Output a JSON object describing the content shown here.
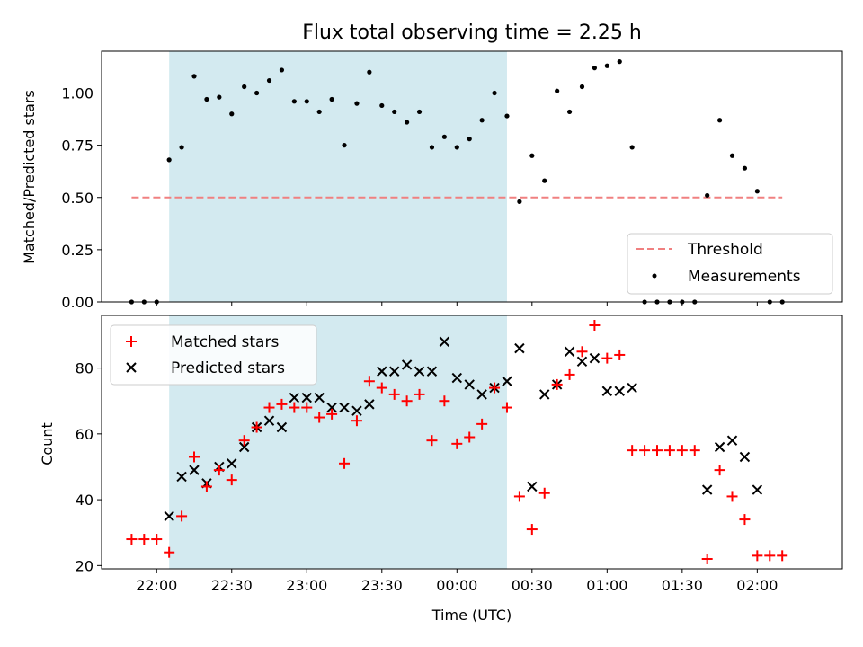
{
  "chart_data": [
    {
      "type": "scatter",
      "title": "Flux total observing time = 2.25 h",
      "xlabel": "",
      "ylabel": "Matched/Predicted stars",
      "ylim": [
        0,
        1.2
      ],
      "yticks": [
        "0.00",
        "0.25",
        "0.50",
        "0.75",
        "1.00"
      ],
      "ytick_values": [
        0,
        0.25,
        0.5,
        0.75,
        1.0
      ],
      "legend_position": "lower-right",
      "shaded_interval": {
        "start": "22:05",
        "end": "00:20",
        "color": "#d3eaf0"
      },
      "threshold": {
        "name": "Threshold",
        "value": 0.5,
        "x_start": "21:50",
        "x_end": "02:10",
        "color": "#f08080"
      },
      "series": [
        {
          "name": "Measurements",
          "marker": "dot",
          "color": "#000000",
          "points": [
            [
              "21:50",
              0
            ],
            [
              "21:55",
              0
            ],
            [
              "22:00",
              0
            ],
            [
              "22:05",
              0.68
            ],
            [
              "22:10",
              0.74
            ],
            [
              "22:15",
              1.08
            ],
            [
              "22:20",
              0.97
            ],
            [
              "22:25",
              0.98
            ],
            [
              "22:30",
              0.9
            ],
            [
              "22:35",
              1.03
            ],
            [
              "22:40",
              1.0
            ],
            [
              "22:45",
              1.06
            ],
            [
              "22:50",
              1.11
            ],
            [
              "22:55",
              0.96
            ],
            [
              "23:00",
              0.96
            ],
            [
              "23:05",
              0.91
            ],
            [
              "23:10",
              0.97
            ],
            [
              "23:15",
              0.75
            ],
            [
              "23:20",
              0.95
            ],
            [
              "23:25",
              1.1
            ],
            [
              "23:30",
              0.94
            ],
            [
              "23:35",
              0.91
            ],
            [
              "23:40",
              0.86
            ],
            [
              "23:45",
              0.91
            ],
            [
              "23:50",
              0.74
            ],
            [
              "23:55",
              0.79
            ],
            [
              "00:00",
              0.74
            ],
            [
              "00:05",
              0.78
            ],
            [
              "00:10",
              0.87
            ],
            [
              "00:15",
              1.0
            ],
            [
              "00:20",
              0.89
            ],
            [
              "00:25",
              0.48
            ],
            [
              "00:30",
              0.7
            ],
            [
              "00:35",
              0.58
            ],
            [
              "00:40",
              1.01
            ],
            [
              "00:45",
              0.91
            ],
            [
              "00:50",
              1.03
            ],
            [
              "00:55",
              1.12
            ],
            [
              "01:00",
              1.13
            ],
            [
              "01:05",
              1.15
            ],
            [
              "01:10",
              0.74
            ],
            [
              "01:15",
              0
            ],
            [
              "01:20",
              0
            ],
            [
              "01:25",
              0
            ],
            [
              "01:30",
              0
            ],
            [
              "01:35",
              0
            ],
            [
              "01:40",
              0.51
            ],
            [
              "01:45",
              0.87
            ],
            [
              "01:50",
              0.7
            ],
            [
              "01:55",
              0.64
            ],
            [
              "02:00",
              0.53
            ],
            [
              "02:05",
              0
            ],
            [
              "02:10",
              0
            ]
          ]
        }
      ]
    },
    {
      "type": "scatter",
      "title": "",
      "xlabel": "Time (UTC)",
      "ylabel": "Count",
      "ylim": [
        19,
        96
      ],
      "yticks": [
        "20",
        "40",
        "60",
        "80"
      ],
      "ytick_values": [
        20,
        40,
        60,
        80
      ],
      "xticks": [
        "22:00",
        "22:30",
        "23:00",
        "23:30",
        "00:00",
        "00:30",
        "01:00",
        "01:30",
        "02:00"
      ],
      "xrange": [
        "21:38",
        "02:34"
      ],
      "legend_position": "upper-left",
      "shaded_interval": {
        "start": "22:05",
        "end": "00:20",
        "color": "#d3eaf0"
      },
      "series": [
        {
          "name": "Matched stars",
          "marker": "plus",
          "color": "#ff0000",
          "points": [
            [
              "21:50",
              28
            ],
            [
              "21:55",
              28
            ],
            [
              "22:00",
              28
            ],
            [
              "22:05",
              24
            ],
            [
              "22:10",
              35
            ],
            [
              "22:15",
              53
            ],
            [
              "22:20",
              44
            ],
            [
              "22:25",
              49
            ],
            [
              "22:30",
              46
            ],
            [
              "22:35",
              58
            ],
            [
              "22:40",
              62
            ],
            [
              "22:45",
              68
            ],
            [
              "22:50",
              69
            ],
            [
              "22:55",
              68
            ],
            [
              "23:00",
              68
            ],
            [
              "23:05",
              65
            ],
            [
              "23:10",
              66
            ],
            [
              "23:15",
              51
            ],
            [
              "23:20",
              64
            ],
            [
              "23:25",
              76
            ],
            [
              "23:30",
              74
            ],
            [
              "23:35",
              72
            ],
            [
              "23:40",
              70
            ],
            [
              "23:45",
              72
            ],
            [
              "23:50",
              58
            ],
            [
              "23:55",
              70
            ],
            [
              "00:00",
              57
            ],
            [
              "00:05",
              59
            ],
            [
              "00:10",
              63
            ],
            [
              "00:15",
              74
            ],
            [
              "00:20",
              68
            ],
            [
              "00:25",
              41
            ],
            [
              "00:30",
              31
            ],
            [
              "00:35",
              42
            ],
            [
              "00:40",
              75
            ],
            [
              "00:45",
              78
            ],
            [
              "00:50",
              85
            ],
            [
              "00:55",
              93
            ],
            [
              "01:00",
              83
            ],
            [
              "01:05",
              84
            ],
            [
              "01:10",
              55
            ],
            [
              "01:15",
              55
            ],
            [
              "01:20",
              55
            ],
            [
              "01:25",
              55
            ],
            [
              "01:30",
              55
            ],
            [
              "01:35",
              55
            ],
            [
              "01:40",
              22
            ],
            [
              "01:45",
              49
            ],
            [
              "01:50",
              41
            ],
            [
              "01:55",
              34
            ],
            [
              "02:00",
              23
            ],
            [
              "02:05",
              23
            ],
            [
              "02:10",
              23
            ]
          ]
        },
        {
          "name": "Predicted stars",
          "marker": "x",
          "color": "#000000",
          "points": [
            [
              "22:05",
              35
            ],
            [
              "22:10",
              47
            ],
            [
              "22:15",
              49
            ],
            [
              "22:20",
              45
            ],
            [
              "22:25",
              50
            ],
            [
              "22:30",
              51
            ],
            [
              "22:35",
              56
            ],
            [
              "22:40",
              62
            ],
            [
              "22:45",
              64
            ],
            [
              "22:50",
              62
            ],
            [
              "22:55",
              71
            ],
            [
              "23:00",
              71
            ],
            [
              "23:05",
              71
            ],
            [
              "23:10",
              68
            ],
            [
              "23:15",
              68
            ],
            [
              "23:20",
              67
            ],
            [
              "23:25",
              69
            ],
            [
              "23:30",
              79
            ],
            [
              "23:35",
              79
            ],
            [
              "23:40",
              81
            ],
            [
              "23:45",
              79
            ],
            [
              "23:50",
              79
            ],
            [
              "23:55",
              88
            ],
            [
              "00:00",
              77
            ],
            [
              "00:05",
              75
            ],
            [
              "00:10",
              72
            ],
            [
              "00:15",
              74
            ],
            [
              "00:20",
              76
            ],
            [
              "00:25",
              86
            ],
            [
              "00:30",
              44
            ],
            [
              "00:35",
              72
            ],
            [
              "00:40",
              75
            ],
            [
              "00:45",
              85
            ],
            [
              "00:50",
              82
            ],
            [
              "00:55",
              83
            ],
            [
              "01:00",
              73
            ],
            [
              "01:05",
              73
            ],
            [
              "01:10",
              74
            ],
            [
              "01:40",
              43
            ],
            [
              "01:45",
              56
            ],
            [
              "01:50",
              58
            ],
            [
              "01:55",
              53
            ],
            [
              "02:00",
              43
            ]
          ]
        }
      ]
    }
  ]
}
